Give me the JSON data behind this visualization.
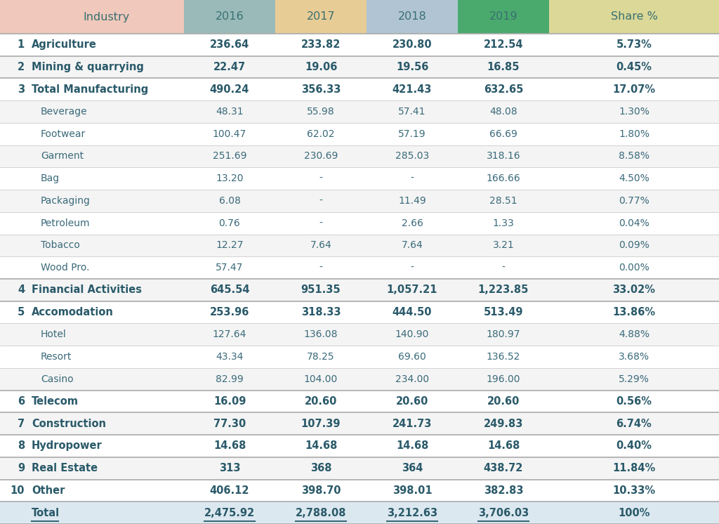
{
  "rows": [
    {
      "num": "1",
      "label": "Agriculture",
      "bold": true,
      "indent": false,
      "v2016": "236.64",
      "v2017": "233.82",
      "v2018": "230.80",
      "v2019": "212.54",
      "share": "5.73%"
    },
    {
      "num": "2",
      "label": "Mining & quarrying",
      "bold": true,
      "indent": false,
      "v2016": "22.47",
      "v2017": "19.06",
      "v2018": "19.56",
      "v2019": "16.85",
      "share": "0.45%"
    },
    {
      "num": "3",
      "label": "Total Manufacturing",
      "bold": true,
      "indent": false,
      "v2016": "490.24",
      "v2017": "356.33",
      "v2018": "421.43",
      "v2019": "632.65",
      "share": "17.07%"
    },
    {
      "num": "",
      "label": "Beverage",
      "bold": false,
      "indent": true,
      "v2016": "48.31",
      "v2017": "55.98",
      "v2018": "57.41",
      "v2019": "48.08",
      "share": "1.30%"
    },
    {
      "num": "",
      "label": "Footwear",
      "bold": false,
      "indent": true,
      "v2016": "100.47",
      "v2017": "62.02",
      "v2018": "57.19",
      "v2019": "66.69",
      "share": "1.80%"
    },
    {
      "num": "",
      "label": "Garment",
      "bold": false,
      "indent": true,
      "v2016": "251.69",
      "v2017": "230.69",
      "v2018": "285.03",
      "v2019": "318.16",
      "share": "8.58%"
    },
    {
      "num": "",
      "label": "Bag",
      "bold": false,
      "indent": true,
      "v2016": "13.20",
      "v2017": "-",
      "v2018": "-",
      "v2019": "166.66",
      "share": "4.50%"
    },
    {
      "num": "",
      "label": "Packaging",
      "bold": false,
      "indent": true,
      "v2016": "6.08",
      "v2017": "-",
      "v2018": "11.49",
      "v2019": "28.51",
      "share": "0.77%"
    },
    {
      "num": "",
      "label": "Petroleum",
      "bold": false,
      "indent": true,
      "v2016": "0.76",
      "v2017": "-",
      "v2018": "2.66",
      "v2019": "1.33",
      "share": "0.04%"
    },
    {
      "num": "",
      "label": "Tobacco",
      "bold": false,
      "indent": true,
      "v2016": "12.27",
      "v2017": "7.64",
      "v2018": "7.64",
      "v2019": "3.21",
      "share": "0.09%"
    },
    {
      "num": "",
      "label": "Wood Pro.",
      "bold": false,
      "indent": true,
      "v2016": "57.47",
      "v2017": "-",
      "v2018": "-",
      "v2019": "-",
      "share": "0.00%"
    },
    {
      "num": "4",
      "label": "Financial Activities",
      "bold": true,
      "indent": false,
      "v2016": "645.54",
      "v2017": "951.35",
      "v2018": "1,057.21",
      "v2019": "1,223.85",
      "share": "33.02%"
    },
    {
      "num": "5",
      "label": "Accomodation",
      "bold": true,
      "indent": false,
      "v2016": "253.96",
      "v2017": "318.33",
      "v2018": "444.50",
      "v2019": "513.49",
      "share": "13.86%"
    },
    {
      "num": "",
      "label": "Hotel",
      "bold": false,
      "indent": true,
      "v2016": "127.64",
      "v2017": "136.08",
      "v2018": "140.90",
      "v2019": "180.97",
      "share": "4.88%"
    },
    {
      "num": "",
      "label": "Resort",
      "bold": false,
      "indent": true,
      "v2016": "43.34",
      "v2017": "78.25",
      "v2018": "69.60",
      "v2019": "136.52",
      "share": "3.68%"
    },
    {
      "num": "",
      "label": "Casino",
      "bold": false,
      "indent": true,
      "v2016": "82.99",
      "v2017": "104.00",
      "v2018": "234.00",
      "v2019": "196.00",
      "share": "5.29%"
    },
    {
      "num": "6",
      "label": "Telecom",
      "bold": true,
      "indent": false,
      "v2016": "16.09",
      "v2017": "20.60",
      "v2018": "20.60",
      "v2019": "20.60",
      "share": "0.56%"
    },
    {
      "num": "7",
      "label": "Construction",
      "bold": true,
      "indent": false,
      "v2016": "77.30",
      "v2017": "107.39",
      "v2018": "241.73",
      "v2019": "249.83",
      "share": "6.74%"
    },
    {
      "num": "8",
      "label": "Hydropower",
      "bold": true,
      "indent": false,
      "v2016": "14.68",
      "v2017": "14.68",
      "v2018": "14.68",
      "v2019": "14.68",
      "share": "0.40%"
    },
    {
      "num": "9",
      "label": "Real Estate",
      "bold": true,
      "indent": false,
      "v2016": "313",
      "v2017": "368",
      "v2018": "364",
      "v2019": "438.72",
      "share": "11.84%"
    },
    {
      "num": "10",
      "label": "Other",
      "bold": true,
      "indent": false,
      "v2016": "406.12",
      "v2017": "398.70",
      "v2018": "398.01",
      "v2019": "382.83",
      "share": "10.33%"
    },
    {
      "num": "",
      "label": "Total",
      "bold": true,
      "indent": false,
      "is_total": true,
      "v2016": "2,475.92",
      "v2017": "2,788.08",
      "v2018": "3,212.63",
      "v2019": "3,706.03",
      "share": "100%"
    }
  ],
  "header_bg_colors": [
    "#f0c8bc",
    "#9ababa",
    "#e8cc96",
    "#b0c4d4",
    "#4aaa6e",
    "#dcd898"
  ],
  "header_labels": [
    "Industry",
    "2016",
    "2017",
    "2018",
    "2019",
    "Share %"
  ],
  "header_text_color": "#3a7070",
  "bold_text_color": "#2a5a6a",
  "normal_text_color": "#3a6a7a",
  "total_bg_color": "#dce8f0",
  "white_row_color": "#ffffff",
  "alt_row_color": "#f4f4f4",
  "divider_color": "#cccccc",
  "strong_divider_color": "#aaaaaa",
  "underline_color": "#3a6878"
}
